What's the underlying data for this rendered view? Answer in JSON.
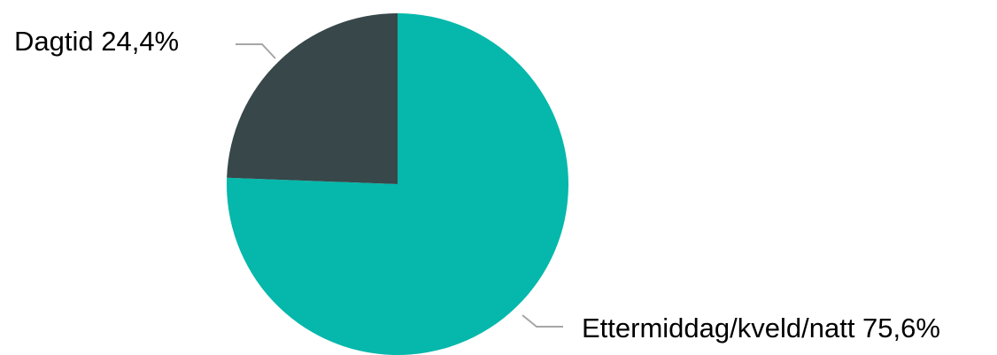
{
  "chart_data": {
    "type": "pie",
    "title": "",
    "slices": [
      {
        "label": "Ettermiddag/kveld/natt",
        "value": 75.6,
        "display": "Ettermiddag/kveld/natt 75,6%",
        "color": "#05b8ab"
      },
      {
        "label": "Dagtid",
        "value": 24.4,
        "display": "Dagtid 24,4%",
        "color": "#37474a"
      }
    ],
    "start_angle_deg": 0,
    "direction": "clockwise",
    "legend": "none"
  }
}
